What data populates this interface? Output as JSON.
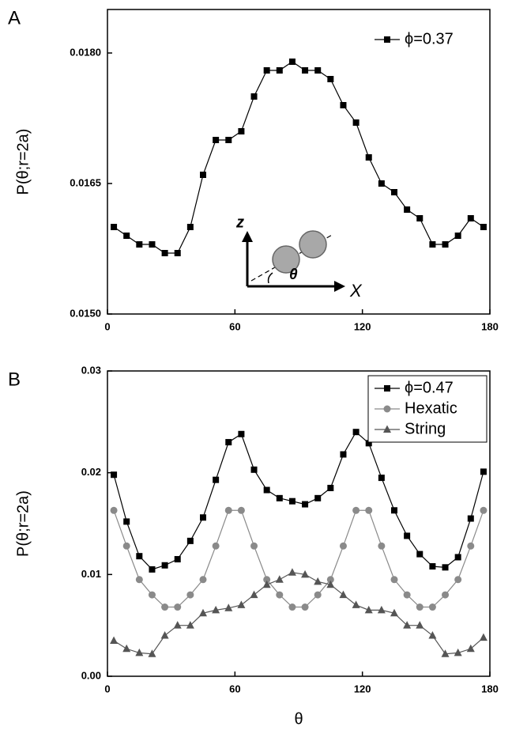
{
  "chart_data": [
    {
      "type": "line",
      "panel_label": "A",
      "y_label": "P(θ;r=2a)",
      "x": [
        3,
        9,
        15,
        21,
        27,
        33,
        39,
        45,
        51,
        57,
        63,
        69,
        75,
        81,
        87,
        93,
        99,
        105,
        111,
        117,
        123,
        129,
        135,
        141,
        147,
        153,
        159,
        165,
        171,
        177
      ],
      "series": [
        {
          "name": "ϕ=0.37",
          "color": "#000000",
          "marker": "square",
          "values": [
            0.016,
            0.0159,
            0.0158,
            0.0158,
            0.0157,
            0.0157,
            0.016,
            0.0166,
            0.017,
            0.017,
            0.0171,
            0.0175,
            0.0178,
            0.0178,
            0.0179,
            0.0178,
            0.0178,
            0.0177,
            0.0174,
            0.0172,
            0.0168,
            0.0165,
            0.0164,
            0.0162,
            0.0161,
            0.0158,
            0.0158,
            0.0159,
            0.0161,
            0.016
          ]
        }
      ],
      "xlim": [
        0,
        180
      ],
      "xticks": [
        0,
        60,
        120,
        180
      ],
      "ylim": [
        0.015,
        0.0185
      ],
      "yticks": [
        {
          "value": 0.015,
          "label": "0.0150"
        },
        0.0165,
        {
          "value": 0.018,
          "label": "0.0180"
        }
      ],
      "legend": "upper right",
      "legend_box": false,
      "annotations": [
        "z",
        "θ",
        "X"
      ]
    },
    {
      "type": "line",
      "panel_label": "B",
      "y_label": "P(θ;r=2a)",
      "x_label": "θ",
      "x": [
        3,
        9,
        15,
        21,
        27,
        33,
        39,
        45,
        51,
        57,
        63,
        69,
        75,
        81,
        87,
        93,
        99,
        105,
        111,
        117,
        123,
        129,
        135,
        141,
        147,
        153,
        159,
        165,
        171,
        177
      ],
      "series": [
        {
          "name": "ϕ=0.47",
          "color": "#000000",
          "marker": "square",
          "values": [
            0.0198,
            0.0152,
            0.0118,
            0.0105,
            0.0109,
            0.0115,
            0.0133,
            0.0156,
            0.0193,
            0.023,
            0.0238,
            0.0203,
            0.0183,
            0.0175,
            0.0172,
            0.0169,
            0.0175,
            0.0185,
            0.0218,
            0.024,
            0.0229,
            0.0195,
            0.0163,
            0.0138,
            0.012,
            0.0108,
            0.0107,
            0.0117,
            0.0155,
            0.0201
          ]
        },
        {
          "name": "Hexatic",
          "color": "#8a8a8a",
          "marker": "circle",
          "values": [
            0.0163,
            0.0128,
            0.0095,
            0.008,
            0.0068,
            0.0068,
            0.008,
            0.0095,
            0.0128,
            0.0163,
            0.0163,
            0.0128,
            0.0095,
            0.008,
            0.0068,
            0.0068,
            0.008,
            0.0095,
            0.0128,
            0.0163,
            0.0163,
            0.0128,
            0.0095,
            0.008,
            0.0068,
            0.0068,
            0.008,
            0.0095,
            0.0128,
            0.0163
          ]
        },
        {
          "name": "String",
          "color": "#555555",
          "marker": "triangle",
          "values": [
            0.0035,
            0.0027,
            0.0023,
            0.0022,
            0.004,
            0.005,
            0.005,
            0.0062,
            0.0065,
            0.0067,
            0.007,
            0.008,
            0.009,
            0.0095,
            0.0102,
            0.01,
            0.0093,
            0.009,
            0.008,
            0.007,
            0.0065,
            0.0065,
            0.0062,
            0.005,
            0.005,
            0.004,
            0.0022,
            0.0023,
            0.0027,
            0.0038
          ]
        }
      ],
      "xlim": [
        0,
        180
      ],
      "xticks": [
        0,
        60,
        120,
        180
      ],
      "ylim": [
        0,
        0.03
      ],
      "yticks": [
        {
          "value": 0,
          "label": "0.00"
        },
        0.01,
        0.02,
        0.03
      ],
      "legend": "upper right",
      "legend_box": true
    }
  ]
}
